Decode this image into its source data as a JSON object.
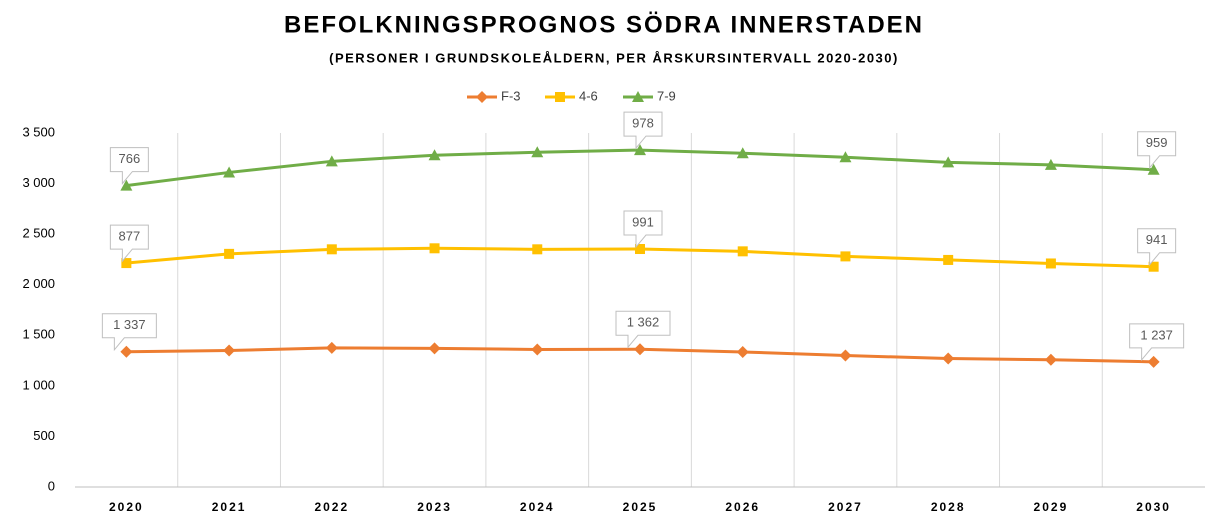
{
  "chart_data": {
    "type": "stacked_line",
    "title": "BEFOLKNINGSPROGNOS SÖDRA INNERSTADEN",
    "subtitle": "(PERSONER I GRUNDSKOLEÅLDERN, PER ÅRSKURSINTERVALL 2020-2030)",
    "categories": [
      "2020",
      "2021",
      "2022",
      "2023",
      "2024",
      "2025",
      "2026",
      "2027",
      "2028",
      "2029",
      "2030"
    ],
    "series": [
      {
        "name": "F-3",
        "color": "#ed7d31",
        "marker": "diamond",
        "values": [
          1337,
          1350,
          1375,
          1370,
          1360,
          1362,
          1335,
          1300,
          1270,
          1258,
          1237
        ],
        "value_labels": [
          "1 337",
          null,
          null,
          null,
          null,
          "1 362",
          null,
          null,
          null,
          null,
          "1 237"
        ]
      },
      {
        "name": "4-6",
        "color": "#ffc000",
        "marker": "square",
        "values": [
          877,
          955,
          975,
          990,
          990,
          991,
          995,
          980,
          975,
          952,
          941
        ],
        "value_labels": [
          "877",
          null,
          null,
          null,
          null,
          "991",
          null,
          null,
          null,
          null,
          "941"
        ]
      },
      {
        "name": "7-9",
        "color": "#70ad47",
        "marker": "triangle",
        "values": [
          766,
          805,
          870,
          920,
          960,
          978,
          970,
          980,
          965,
          975,
          959
        ],
        "value_labels": [
          "766",
          null,
          null,
          null,
          null,
          "978",
          null,
          null,
          null,
          null,
          "959"
        ]
      }
    ],
    "ylim": [
      0,
      3500
    ],
    "yticks": [
      0,
      500,
      {
        "value": 1000,
        "label": "1 000"
      },
      {
        "value": 1500,
        "label": "1 500"
      },
      {
        "value": 2000,
        "label": "2 000"
      },
      {
        "value": 2500,
        "label": "2 500"
      },
      {
        "value": 3000,
        "label": "3 000"
      },
      {
        "value": 3500,
        "label": "3 500"
      }
    ],
    "legend": "top",
    "grid": "x"
  }
}
